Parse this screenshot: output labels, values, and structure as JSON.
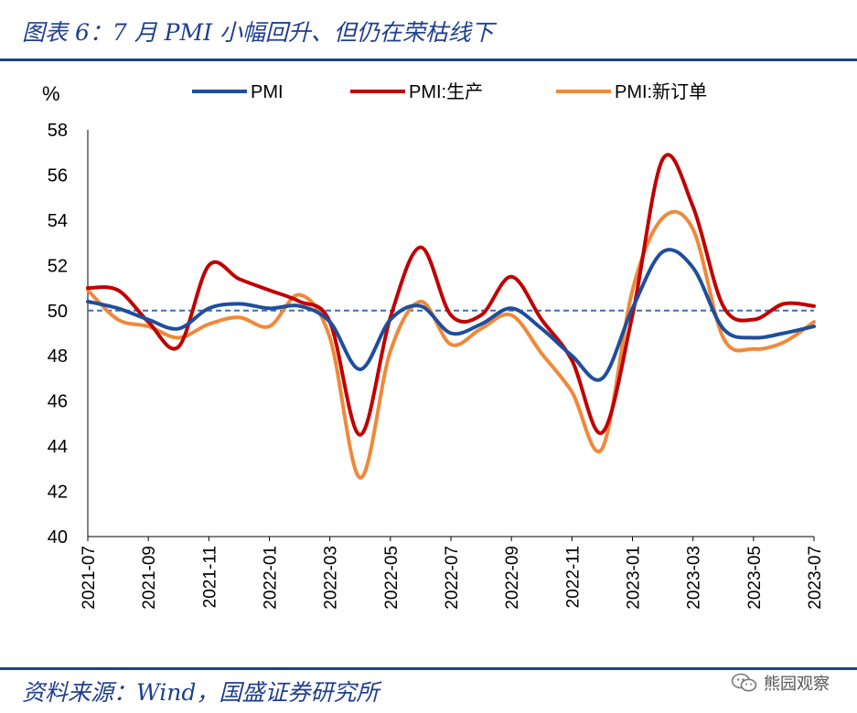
{
  "header": {
    "title": "图表 6：7 月 PMI 小幅回升、但仍在荣枯线下"
  },
  "footer": {
    "source": "资料来源：Wind，国盛证券研究所",
    "watermark": "熊园观察",
    "watermark_icon": "wechat-icon"
  },
  "colors": {
    "PMI": "#1f4e9c",
    "PMI:生产": "#c00000",
    "PMI:新订单": "#f0883a",
    "reference": "#3d6bbf",
    "rule": "#1f3f8f"
  },
  "chart_data": {
    "type": "line",
    "unit_label": "%",
    "ylim": [
      40,
      58
    ],
    "yticks": [
      40,
      42,
      44,
      46,
      48,
      50,
      52,
      54,
      56,
      58
    ],
    "xtick_labels": [
      "2021-07",
      "2021-09",
      "2021-11",
      "2022-01",
      "2022-03",
      "2022-05",
      "2022-07",
      "2022-09",
      "2022-11",
      "2023-01",
      "2023-03",
      "2023-05",
      "2023-07"
    ],
    "x": [
      "2021-07",
      "2021-08",
      "2021-09",
      "2021-10",
      "2021-11",
      "2021-12",
      "2022-01",
      "2022-02",
      "2022-03",
      "2022-04",
      "2022-05",
      "2022-06",
      "2022-07",
      "2022-08",
      "2022-09",
      "2022-10",
      "2022-11",
      "2022-12",
      "2023-01",
      "2023-02",
      "2023-03",
      "2023-04",
      "2023-05",
      "2023-06",
      "2023-07"
    ],
    "reference_line": 50,
    "legend_position": "top",
    "grid": false,
    "series": [
      {
        "name": "PMI",
        "values": [
          50.4,
          50.1,
          49.6,
          49.2,
          50.1,
          50.3,
          50.1,
          50.2,
          49.5,
          47.4,
          49.6,
          50.2,
          49.0,
          49.4,
          50.1,
          49.2,
          48.0,
          47.0,
          50.1,
          52.6,
          51.9,
          49.2,
          48.8,
          49.0,
          49.3
        ]
      },
      {
        "name": "PMI:生产",
        "values": [
          51.0,
          50.9,
          49.5,
          48.4,
          52.0,
          51.4,
          50.9,
          50.4,
          49.5,
          44.5,
          49.7,
          52.8,
          49.8,
          49.8,
          51.5,
          49.6,
          47.8,
          44.6,
          49.8,
          56.7,
          54.6,
          50.2,
          49.6,
          50.3,
          50.2
        ]
      },
      {
        "name": "PMI:新订单",
        "values": [
          50.9,
          49.6,
          49.3,
          48.8,
          49.4,
          49.7,
          49.3,
          50.7,
          48.8,
          42.6,
          48.2,
          50.4,
          48.5,
          49.2,
          49.8,
          48.1,
          46.4,
          43.9,
          50.9,
          54.1,
          53.6,
          48.8,
          48.3,
          48.6,
          49.5
        ]
      }
    ]
  }
}
